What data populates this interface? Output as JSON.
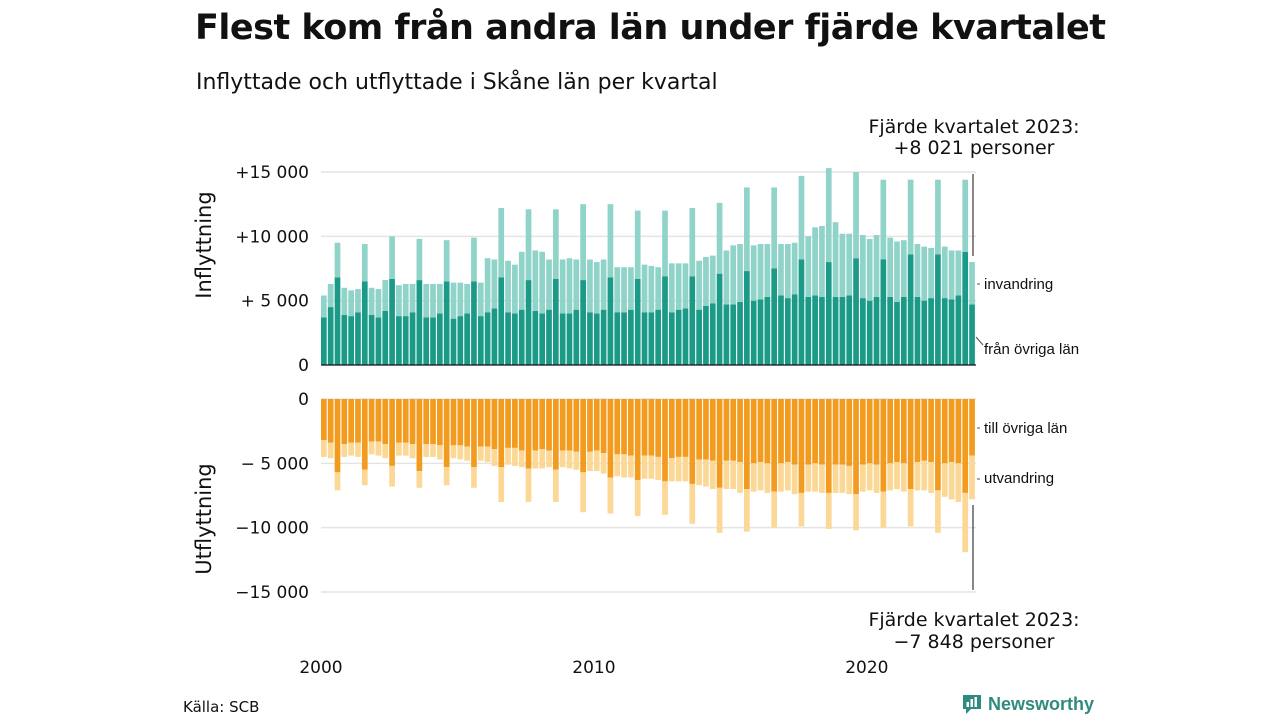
{
  "title": "Flest kom från andra län under fjärde kvartalet",
  "subtitle": "Inflyttade och utflyttade i Skåne län per kvartal",
  "source": "Källa: SCB",
  "logo": {
    "name": "Newsworthy"
  },
  "colors": {
    "fran_ovriga_lan": "#1a9a87",
    "invandring": "#8fd3c9",
    "till_ovriga_lan": "#f29b1e",
    "utvandring": "#fbd896",
    "grid": "#e4e4e4",
    "logo": "#2e8b7e"
  },
  "annotations": {
    "top": {
      "line1": "Fjärde kvartalet 2023:",
      "line2": "+8 021 personer"
    },
    "bottom": {
      "line1": "Fjärde kvartalet 2023:",
      "line2": "−7 848 personer"
    }
  },
  "chart_data": [
    {
      "type": "bar",
      "stacked": true,
      "ylabel": "Inflyttning",
      "ylim": [
        0,
        15000
      ],
      "yticks": [
        {
          "value": 15000,
          "label": "+15 000"
        },
        {
          "value": 10000,
          "label": "+10 000"
        },
        {
          "value": 5000,
          "label": "+ 5 000"
        },
        {
          "value": 0,
          "label": "0"
        }
      ],
      "x_start": "2000 Q1",
      "x_end": "2023 Q4",
      "xticks": [
        {
          "year": 2000,
          "label": "2000"
        },
        {
          "year": 2010,
          "label": "2010"
        },
        {
          "year": 2020,
          "label": "2020"
        }
      ],
      "series": [
        {
          "name": "från övriga län",
          "values": [
            3700,
            4500,
            6800,
            3900,
            3800,
            4100,
            6500,
            3900,
            3700,
            4200,
            6700,
            3800,
            3800,
            4100,
            6600,
            3700,
            3700,
            4000,
            6500,
            3600,
            3800,
            4000,
            6500,
            3800,
            4100,
            4400,
            6800,
            4100,
            4000,
            4300,
            6600,
            4200,
            4000,
            4300,
            6700,
            4000,
            4000,
            4300,
            6600,
            4100,
            4000,
            4300,
            6800,
            4100,
            4100,
            4300,
            6700,
            4100,
            4100,
            4300,
            6900,
            4100,
            4300,
            4400,
            6900,
            4300,
            4600,
            4800,
            7100,
            4700,
            4700,
            4900,
            7300,
            5000,
            5100,
            5300,
            7500,
            5400,
            5200,
            5500,
            8200,
            5300,
            5400,
            5300,
            8000,
            5300,
            5300,
            5400,
            8300,
            5200,
            5000,
            5300,
            8200,
            5300,
            4900,
            5300,
            8600,
            5300,
            5000,
            5200,
            8600,
            5200,
            5100,
            5400,
            8800,
            4700
          ]
        },
        {
          "name": "invandring",
          "values": [
            1700,
            1800,
            2700,
            2100,
            2000,
            1800,
            2900,
            2100,
            2200,
            2400,
            3300,
            2400,
            2500,
            2200,
            3200,
            2600,
            2600,
            2300,
            3200,
            2800,
            2600,
            2300,
            3400,
            2600,
            4200,
            3800,
            5400,
            4000,
            3800,
            4500,
            5500,
            4700,
            4800,
            3900,
            5400,
            4200,
            4300,
            3900,
            5900,
            4100,
            4000,
            3900,
            5700,
            3500,
            3500,
            3300,
            5300,
            3700,
            3600,
            3300,
            5100,
            3800,
            3600,
            3500,
            5300,
            3800,
            3800,
            3700,
            5500,
            4200,
            4600,
            4500,
            6500,
            4300,
            4300,
            4100,
            6300,
            4000,
            4200,
            4000,
            6500,
            4700,
            5300,
            5500,
            7300,
            5800,
            4900,
            4800,
            6700,
            4900,
            4800,
            4800,
            6200,
            4600,
            4700,
            4400,
            5800,
            4100,
            4200,
            3900,
            5800,
            4000,
            3800,
            3500,
            5600,
            3300
          ]
        }
      ]
    },
    {
      "type": "bar",
      "stacked": true,
      "ylabel": "Utflyttning",
      "ylim": [
        -15000,
        0
      ],
      "yticks": [
        {
          "value": 0,
          "label": "0"
        },
        {
          "value": -5000,
          "label": "− 5 000"
        },
        {
          "value": -10000,
          "label": "−10 000"
        },
        {
          "value": -15000,
          "label": "−15 000"
        }
      ],
      "series": [
        {
          "name": "till övriga län",
          "values": [
            -3200,
            -3400,
            -5700,
            -3500,
            -3400,
            -3400,
            -5500,
            -3300,
            -3300,
            -3500,
            -5200,
            -3400,
            -3400,
            -3500,
            -5600,
            -3500,
            -3500,
            -3600,
            -5300,
            -3600,
            -3600,
            -3700,
            -5300,
            -3700,
            -3700,
            -3900,
            -5300,
            -3800,
            -3800,
            -4000,
            -5400,
            -4000,
            -3900,
            -4000,
            -5500,
            -4000,
            -4000,
            -4100,
            -5700,
            -4100,
            -4000,
            -4200,
            -6100,
            -4300,
            -4300,
            -4400,
            -6300,
            -4400,
            -4400,
            -4500,
            -6400,
            -4600,
            -4500,
            -4500,
            -6600,
            -4700,
            -4700,
            -4800,
            -6900,
            -4800,
            -4800,
            -4900,
            -7000,
            -5000,
            -4900,
            -5000,
            -7200,
            -5000,
            -4900,
            -5100,
            -7300,
            -5100,
            -5000,
            -5100,
            -7300,
            -5100,
            -5100,
            -5200,
            -7400,
            -5100,
            -5000,
            -5100,
            -7200,
            -5000,
            -4900,
            -5000,
            -7000,
            -4900,
            -4800,
            -4900,
            -7100,
            -5000,
            -4900,
            -5000,
            -7300,
            -4400
          ]
        },
        {
          "name": "utvandring",
          "values": [
            -1300,
            -1200,
            -1400,
            -1000,
            -1000,
            -1100,
            -1200,
            -1000,
            -1100,
            -1100,
            -1600,
            -1000,
            -1000,
            -1100,
            -1300,
            -1000,
            -1000,
            -1100,
            -1400,
            -1000,
            -1100,
            -1100,
            -1600,
            -1100,
            -1200,
            -1300,
            -2700,
            -1300,
            -1400,
            -1300,
            -2600,
            -1400,
            -1500,
            -1300,
            -2500,
            -1300,
            -1400,
            -1400,
            -3100,
            -1500,
            -1600,
            -1600,
            -2800,
            -1700,
            -1800,
            -1700,
            -2800,
            -1800,
            -1800,
            -1800,
            -2600,
            -1800,
            -1900,
            -1900,
            -3100,
            -2000,
            -2100,
            -2200,
            -3500,
            -2200,
            -2200,
            -2400,
            -3300,
            -2200,
            -2200,
            -2300,
            -2800,
            -2200,
            -2200,
            -2300,
            -2600,
            -2100,
            -2200,
            -2200,
            -2800,
            -2200,
            -2200,
            -2200,
            -2800,
            -2100,
            -2100,
            -2200,
            -2800,
            -2100,
            -2100,
            -2200,
            -2900,
            -2200,
            -2300,
            -2400,
            -3300,
            -2600,
            -2900,
            -3000,
            -4600,
            -3400
          ]
        }
      ]
    }
  ]
}
